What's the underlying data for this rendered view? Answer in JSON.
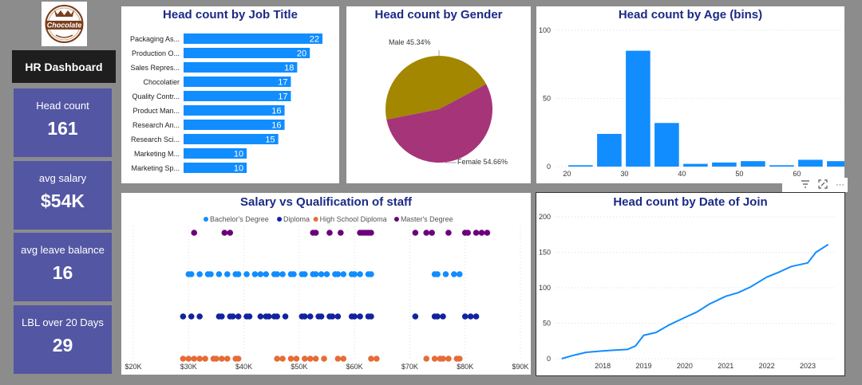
{
  "sidebar": {
    "logo_text": "Chocolate",
    "title": "HR Dashboard",
    "kpis": [
      {
        "label": "Head count",
        "value": "161"
      },
      {
        "label": "avg salary",
        "value": "$54K"
      },
      {
        "label": "avg leave balance",
        "value": "16"
      },
      {
        "label": "LBL over 20 Days",
        "value": "29"
      }
    ]
  },
  "toolbar": {
    "filter_icon": "filter-icon",
    "focus_icon": "focus-mode-icon",
    "more_icon": "more-options-icon",
    "more_label": "···"
  },
  "chart_data": [
    {
      "type": "bar",
      "orientation": "horizontal",
      "title": "Head count by Job Title",
      "categories": [
        "Packaging As...",
        "Production O...",
        "Sales Repres...",
        "Chocolatier",
        "Quality Contr...",
        "Product Man...",
        "Research An...",
        "Research Sci...",
        "Marketing M...",
        "Marketing Sp..."
      ],
      "values": [
        22,
        20,
        18,
        17,
        17,
        16,
        16,
        15,
        10,
        10
      ],
      "color": "#118dff"
    },
    {
      "type": "pie",
      "title": "Head count by Gender",
      "slices": [
        {
          "label": "Male 45.34%",
          "value": 45.34,
          "color": "#a38700"
        },
        {
          "label": "Female 54.66%",
          "value": 54.66,
          "color": "#a63479"
        }
      ]
    },
    {
      "type": "bar",
      "title": "Head count by Age (bins)",
      "x": [
        20,
        25,
        30,
        35,
        40,
        45,
        50,
        55,
        60,
        65
      ],
      "values": [
        1,
        24,
        85,
        32,
        2,
        3,
        4,
        1,
        5,
        4
      ],
      "xticks": [
        "20",
        "30",
        "40",
        "50",
        "60"
      ],
      "xtick_values": [
        20,
        30,
        40,
        50,
        60
      ],
      "yticks": [
        "0",
        "50",
        "100"
      ],
      "ytick_values": [
        0,
        50,
        100
      ],
      "xlim": [
        18,
        68
      ],
      "ylim": [
        0,
        100
      ],
      "color": "#118dff"
    },
    {
      "type": "scatter",
      "title": "Salary  vs  Qualification of staff",
      "xticks": [
        "$20K",
        "$30K",
        "$40K",
        "$50K",
        "$60K",
        "$70K",
        "$80K",
        "$90K"
      ],
      "xtick_values": [
        20,
        30,
        40,
        50,
        60,
        70,
        80,
        90
      ],
      "xlim": [
        20,
        90
      ],
      "series": [
        {
          "name": "Bachelor's Degree",
          "color": "#118dff",
          "row": 1,
          "x": [
            30,
            30.5,
            32,
            33.5,
            34,
            35.5,
            37,
            38.5,
            39,
            40.5,
            42,
            43,
            44,
            45.5,
            46,
            47,
            48.5,
            49,
            50.5,
            51,
            52.5,
            53,
            54,
            55,
            56.5,
            57,
            58,
            59.5,
            60,
            61,
            62.5,
            63,
            74.5,
            75,
            76.5,
            78,
            79
          ]
        },
        {
          "name": "Diploma",
          "color": "#12239e",
          "row": 2,
          "x": [
            29,
            30.5,
            32,
            35.5,
            36,
            37.5,
            38,
            39,
            40.5,
            41,
            43,
            44,
            44.5,
            45.5,
            46,
            47.5,
            50.5,
            51,
            52,
            53.5,
            54,
            55.5,
            56,
            57,
            59.5,
            60,
            61,
            62.5,
            63,
            71,
            74.5,
            75,
            76,
            80,
            81,
            82
          ]
        },
        {
          "name": "High School Diploma",
          "color": "#e66c37",
          "row": 3,
          "x": [
            29,
            30,
            31,
            32,
            33,
            34.5,
            35,
            36,
            37,
            38.5,
            39,
            46,
            47,
            48.5,
            49.5,
            51,
            52,
            53,
            54.5,
            57,
            58,
            63,
            64,
            73,
            74.5,
            75.5,
            76,
            77,
            78.5,
            79
          ]
        },
        {
          "name": "Master's Degree",
          "color": "#6b007b",
          "row": 0,
          "x": [
            31,
            36.5,
            37.5,
            52.5,
            53,
            55.5,
            57.5,
            61,
            61.5,
            62,
            62.5,
            63,
            71,
            73,
            74,
            77,
            80,
            80.5,
            82,
            83,
            84
          ]
        }
      ],
      "legend_position": "top"
    },
    {
      "type": "line",
      "title": "Head count by Date of Join",
      "x": [
        2017.0,
        2017.3,
        2017.6,
        2018.0,
        2018.3,
        2018.6,
        2018.8,
        2019.0,
        2019.3,
        2019.6,
        2020.0,
        2020.3,
        2020.6,
        2021.0,
        2021.3,
        2021.6,
        2022.0,
        2022.3,
        2022.6,
        2023.0,
        2023.2,
        2023.5
      ],
      "values": [
        0,
        5,
        9,
        11,
        12,
        13,
        18,
        33,
        37,
        47,
        58,
        66,
        77,
        88,
        93,
        101,
        115,
        122,
        130,
        135,
        150,
        161
      ],
      "xticks": [
        "2018",
        "2019",
        "2020",
        "2021",
        "2022",
        "2023"
      ],
      "xtick_values": [
        2018,
        2019,
        2020,
        2021,
        2022,
        2023
      ],
      "yticks": [
        "0",
        "50",
        "100",
        "150",
        "200"
      ],
      "ytick_values": [
        0,
        50,
        100,
        150,
        200
      ],
      "xlim": [
        2016.85,
        2023.7
      ],
      "ylim": [
        0,
        200
      ],
      "color": "#118dff"
    }
  ]
}
